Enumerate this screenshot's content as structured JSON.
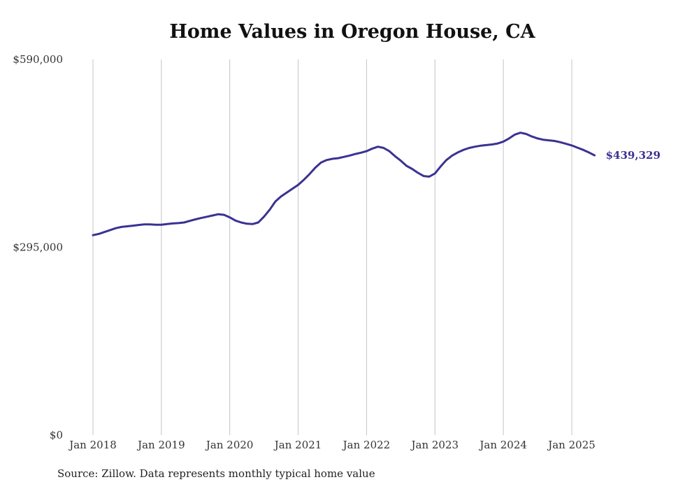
{
  "chart_data": {
    "type": "line",
    "title": "Home Values in Oregon House, CA",
    "source": "Source: Zillow. Data represents monthly typical home value",
    "ylim": [
      0,
      590000
    ],
    "y_ticks": [
      {
        "value": 0,
        "label": "$0"
      },
      {
        "value": 295000,
        "label": "$295,000"
      },
      {
        "value": 590000,
        "label": "$590,000"
      }
    ],
    "x_ticks": [
      {
        "value": "2018-01",
        "label": "Jan 2018"
      },
      {
        "value": "2019-01",
        "label": "Jan 2019"
      },
      {
        "value": "2020-01",
        "label": "Jan 2020"
      },
      {
        "value": "2021-01",
        "label": "Jan 2021"
      },
      {
        "value": "2022-01",
        "label": "Jan 2022"
      },
      {
        "value": "2023-01",
        "label": "Jan 2023"
      },
      {
        "value": "2024-01",
        "label": "Jan 2024"
      },
      {
        "value": "2025-01",
        "label": "Jan 2025"
      }
    ],
    "grid": "vertical",
    "line_color": "#3a3293",
    "end_label": "$439,329",
    "series": [
      {
        "points": [
          [
            "2018-01",
            314000
          ],
          [
            "2018-02",
            316000
          ],
          [
            "2018-03",
            319000
          ],
          [
            "2018-04",
            322000
          ],
          [
            "2018-05",
            325000
          ],
          [
            "2018-06",
            327000
          ],
          [
            "2018-07",
            328000
          ],
          [
            "2018-08",
            329000
          ],
          [
            "2018-09",
            330000
          ],
          [
            "2018-10",
            331000
          ],
          [
            "2018-11",
            331000
          ],
          [
            "2018-12",
            330500
          ],
          [
            "2019-01",
            330500
          ],
          [
            "2019-02",
            331500
          ],
          [
            "2019-03",
            332500
          ],
          [
            "2019-04",
            333000
          ],
          [
            "2019-05",
            334000
          ],
          [
            "2019-06",
            336500
          ],
          [
            "2019-07",
            339000
          ],
          [
            "2019-08",
            341000
          ],
          [
            "2019-09",
            343000
          ],
          [
            "2019-10",
            345000
          ],
          [
            "2019-11",
            347000
          ],
          [
            "2019-12",
            346000
          ],
          [
            "2020-01",
            342000
          ],
          [
            "2020-02",
            337000
          ],
          [
            "2020-03",
            334000
          ],
          [
            "2020-04",
            332000
          ],
          [
            "2020-05",
            331500
          ],
          [
            "2020-06",
            334000
          ],
          [
            "2020-07",
            343000
          ],
          [
            "2020-08",
            354000
          ],
          [
            "2020-09",
            367000
          ],
          [
            "2020-10",
            375000
          ],
          [
            "2020-11",
            381000
          ],
          [
            "2020-12",
            387000
          ],
          [
            "2021-01",
            393000
          ],
          [
            "2021-02",
            401000
          ],
          [
            "2021-03",
            410000
          ],
          [
            "2021-04",
            420000
          ],
          [
            "2021-05",
            428000
          ],
          [
            "2021-06",
            432000
          ],
          [
            "2021-07",
            434000
          ],
          [
            "2021-08",
            435000
          ],
          [
            "2021-09",
            437000
          ],
          [
            "2021-10",
            439000
          ],
          [
            "2021-11",
            441500
          ],
          [
            "2021-12",
            443500
          ],
          [
            "2022-01",
            446000
          ],
          [
            "2022-02",
            450000
          ],
          [
            "2022-03",
            453000
          ],
          [
            "2022-04",
            451000
          ],
          [
            "2022-05",
            446000
          ],
          [
            "2022-06",
            438000
          ],
          [
            "2022-07",
            431000
          ],
          [
            "2022-08",
            423000
          ],
          [
            "2022-09",
            418000
          ],
          [
            "2022-10",
            412000
          ],
          [
            "2022-11",
            407000
          ],
          [
            "2022-12",
            406000
          ],
          [
            "2023-01",
            411000
          ],
          [
            "2023-02",
            422000
          ],
          [
            "2023-03",
            432000
          ],
          [
            "2023-04",
            439000
          ],
          [
            "2023-05",
            444000
          ],
          [
            "2023-06",
            448000
          ],
          [
            "2023-07",
            451000
          ],
          [
            "2023-08",
            453000
          ],
          [
            "2023-09",
            454500
          ],
          [
            "2023-10",
            455500
          ],
          [
            "2023-11",
            456500
          ],
          [
            "2023-12",
            458000
          ],
          [
            "2024-01",
            461000
          ],
          [
            "2024-02",
            466000
          ],
          [
            "2024-03",
            472000
          ],
          [
            "2024-04",
            475000
          ],
          [
            "2024-05",
            473000
          ],
          [
            "2024-06",
            469000
          ],
          [
            "2024-07",
            466000
          ],
          [
            "2024-08",
            464000
          ],
          [
            "2024-09",
            463000
          ],
          [
            "2024-10",
            462000
          ],
          [
            "2024-11",
            460000
          ],
          [
            "2024-12",
            457500
          ],
          [
            "2025-01",
            455000
          ],
          [
            "2025-02",
            451500
          ],
          [
            "2025-03",
            448000
          ],
          [
            "2025-04",
            444000
          ],
          [
            "2025-05",
            439329
          ]
        ]
      }
    ]
  }
}
